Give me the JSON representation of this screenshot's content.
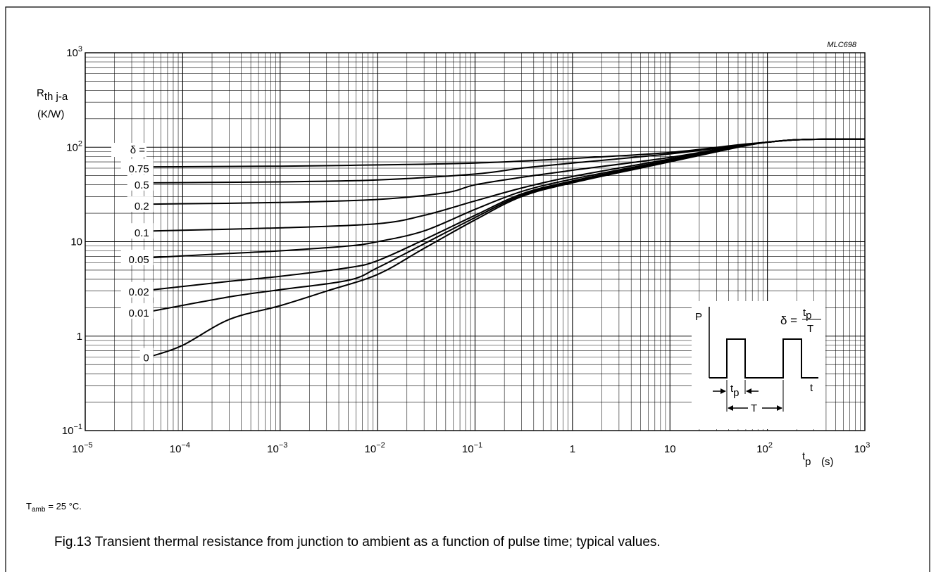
{
  "chart_data": {
    "type": "line",
    "code": "MLC698",
    "x_scale": "log",
    "y_scale": "log",
    "xlim": [
      1e-05,
      1000
    ],
    "ylim": [
      0.1,
      1000
    ],
    "grid": true,
    "x_ticks": [
      {
        "v": 1e-05,
        "base": "10",
        "exp": "−5"
      },
      {
        "v": 0.0001,
        "base": "10",
        "exp": "−4"
      },
      {
        "v": 0.001,
        "base": "10",
        "exp": "−3"
      },
      {
        "v": 0.01,
        "base": "10",
        "exp": "−2"
      },
      {
        "v": 0.1,
        "base": "10",
        "exp": "−1"
      },
      {
        "v": 1,
        "base": "1",
        "exp": ""
      },
      {
        "v": 10,
        "base": "10",
        "exp": ""
      },
      {
        "v": 100,
        "base": "10",
        "exp": "2"
      },
      {
        "v": 1000,
        "base": "10",
        "exp": "3"
      }
    ],
    "y_ticks": [
      {
        "v": 0.1,
        "base": "10",
        "exp": "−1"
      },
      {
        "v": 1,
        "base": "1",
        "exp": ""
      },
      {
        "v": 10,
        "base": "10",
        "exp": ""
      },
      {
        "v": 100,
        "base": "10",
        "exp": "2"
      },
      {
        "v": 1000,
        "base": "10",
        "exp": "3"
      }
    ],
    "ylabel": {
      "main": "R",
      "sub": "th j-a",
      "unit": "(K/W)"
    },
    "xlabel": {
      "main": "t",
      "sub": "p",
      "unit": "(s)"
    },
    "delta_header": "δ =",
    "series": [
      {
        "name": "0.75",
        "x": [
          5e-05,
          0.001,
          0.01,
          0.1,
          1,
          10,
          50,
          100,
          200,
          500,
          1000
        ],
        "y": [
          62,
          63,
          65,
          68,
          76,
          88,
          106,
          113,
          120,
          122,
          122
        ]
      },
      {
        "name": "0.5",
        "x": [
          5e-05,
          0.001,
          0.01,
          0.1,
          0.3,
          1,
          10,
          50,
          100,
          200,
          500,
          1000
        ],
        "y": [
          42,
          43,
          45,
          52,
          60,
          68,
          85,
          104,
          113,
          120,
          122,
          122
        ]
      },
      {
        "name": "0.2",
        "x": [
          5e-05,
          0.001,
          0.01,
          0.05,
          0.1,
          0.3,
          1,
          10,
          50,
          100,
          200,
          500,
          1000
        ],
        "y": [
          25,
          26,
          28,
          33,
          40,
          48,
          57,
          78,
          104,
          113,
          120,
          122,
          122
        ]
      },
      {
        "name": "0.1",
        "x": [
          5e-05,
          0.001,
          0.01,
          0.03,
          0.1,
          0.3,
          1,
          10,
          50,
          100,
          200,
          500,
          1000
        ],
        "y": [
          13,
          14,
          15.5,
          19,
          27,
          37,
          49,
          75,
          103,
          113,
          120,
          122,
          122
        ]
      },
      {
        "name": "0.05",
        "x": [
          5e-05,
          0.0003,
          0.001,
          0.005,
          0.01,
          0.03,
          0.1,
          0.3,
          1,
          10,
          50,
          100,
          200,
          500,
          1000
        ],
        "y": [
          6.8,
          7.5,
          8,
          9,
          10,
          13,
          22,
          34,
          46,
          73,
          102,
          113,
          120,
          122,
          122
        ]
      },
      {
        "name": "0.02",
        "x": [
          5e-05,
          0.0003,
          0.001,
          0.005,
          0.01,
          0.03,
          0.1,
          0.3,
          1,
          10,
          50,
          100,
          200,
          500,
          1000
        ],
        "y": [
          3.1,
          3.8,
          4.3,
          5.3,
          6.3,
          10.5,
          19,
          32,
          44,
          72,
          102,
          113,
          120,
          122,
          122
        ]
      },
      {
        "name": "0.01",
        "x": [
          5e-05,
          0.0003,
          0.001,
          0.005,
          0.01,
          0.03,
          0.1,
          0.3,
          1,
          10,
          50,
          100,
          200,
          500,
          1000
        ],
        "y": [
          1.85,
          2.6,
          3.1,
          3.9,
          5.3,
          9.5,
          18,
          31,
          43,
          71,
          101,
          113,
          120,
          122,
          122
        ]
      },
      {
        "name": "0",
        "x": [
          5e-05,
          0.0001,
          0.0003,
          0.001,
          0.003,
          0.01,
          0.03,
          0.1,
          0.3,
          1,
          10,
          50,
          100,
          200,
          500,
          1000
        ],
        "y": [
          0.62,
          0.8,
          1.5,
          2.1,
          3.0,
          4.5,
          8.5,
          17,
          30,
          42,
          70,
          100,
          113,
          120,
          122,
          122
        ]
      }
    ],
    "inset": {
      "p_label": "P",
      "t_label": "t",
      "tp_main": "t",
      "tp_sub": "p",
      "T_label": "T",
      "formula_left": "δ =",
      "formula_num_main": "t",
      "formula_num_sub": "p",
      "formula_den": "T"
    }
  },
  "notes": {
    "condition_main": "T",
    "condition_sub": "amb",
    "condition_value": "= 25 °C."
  },
  "caption": "Fig.13  Transient thermal resistance from junction to ambient as a function of pulse time; typical values."
}
